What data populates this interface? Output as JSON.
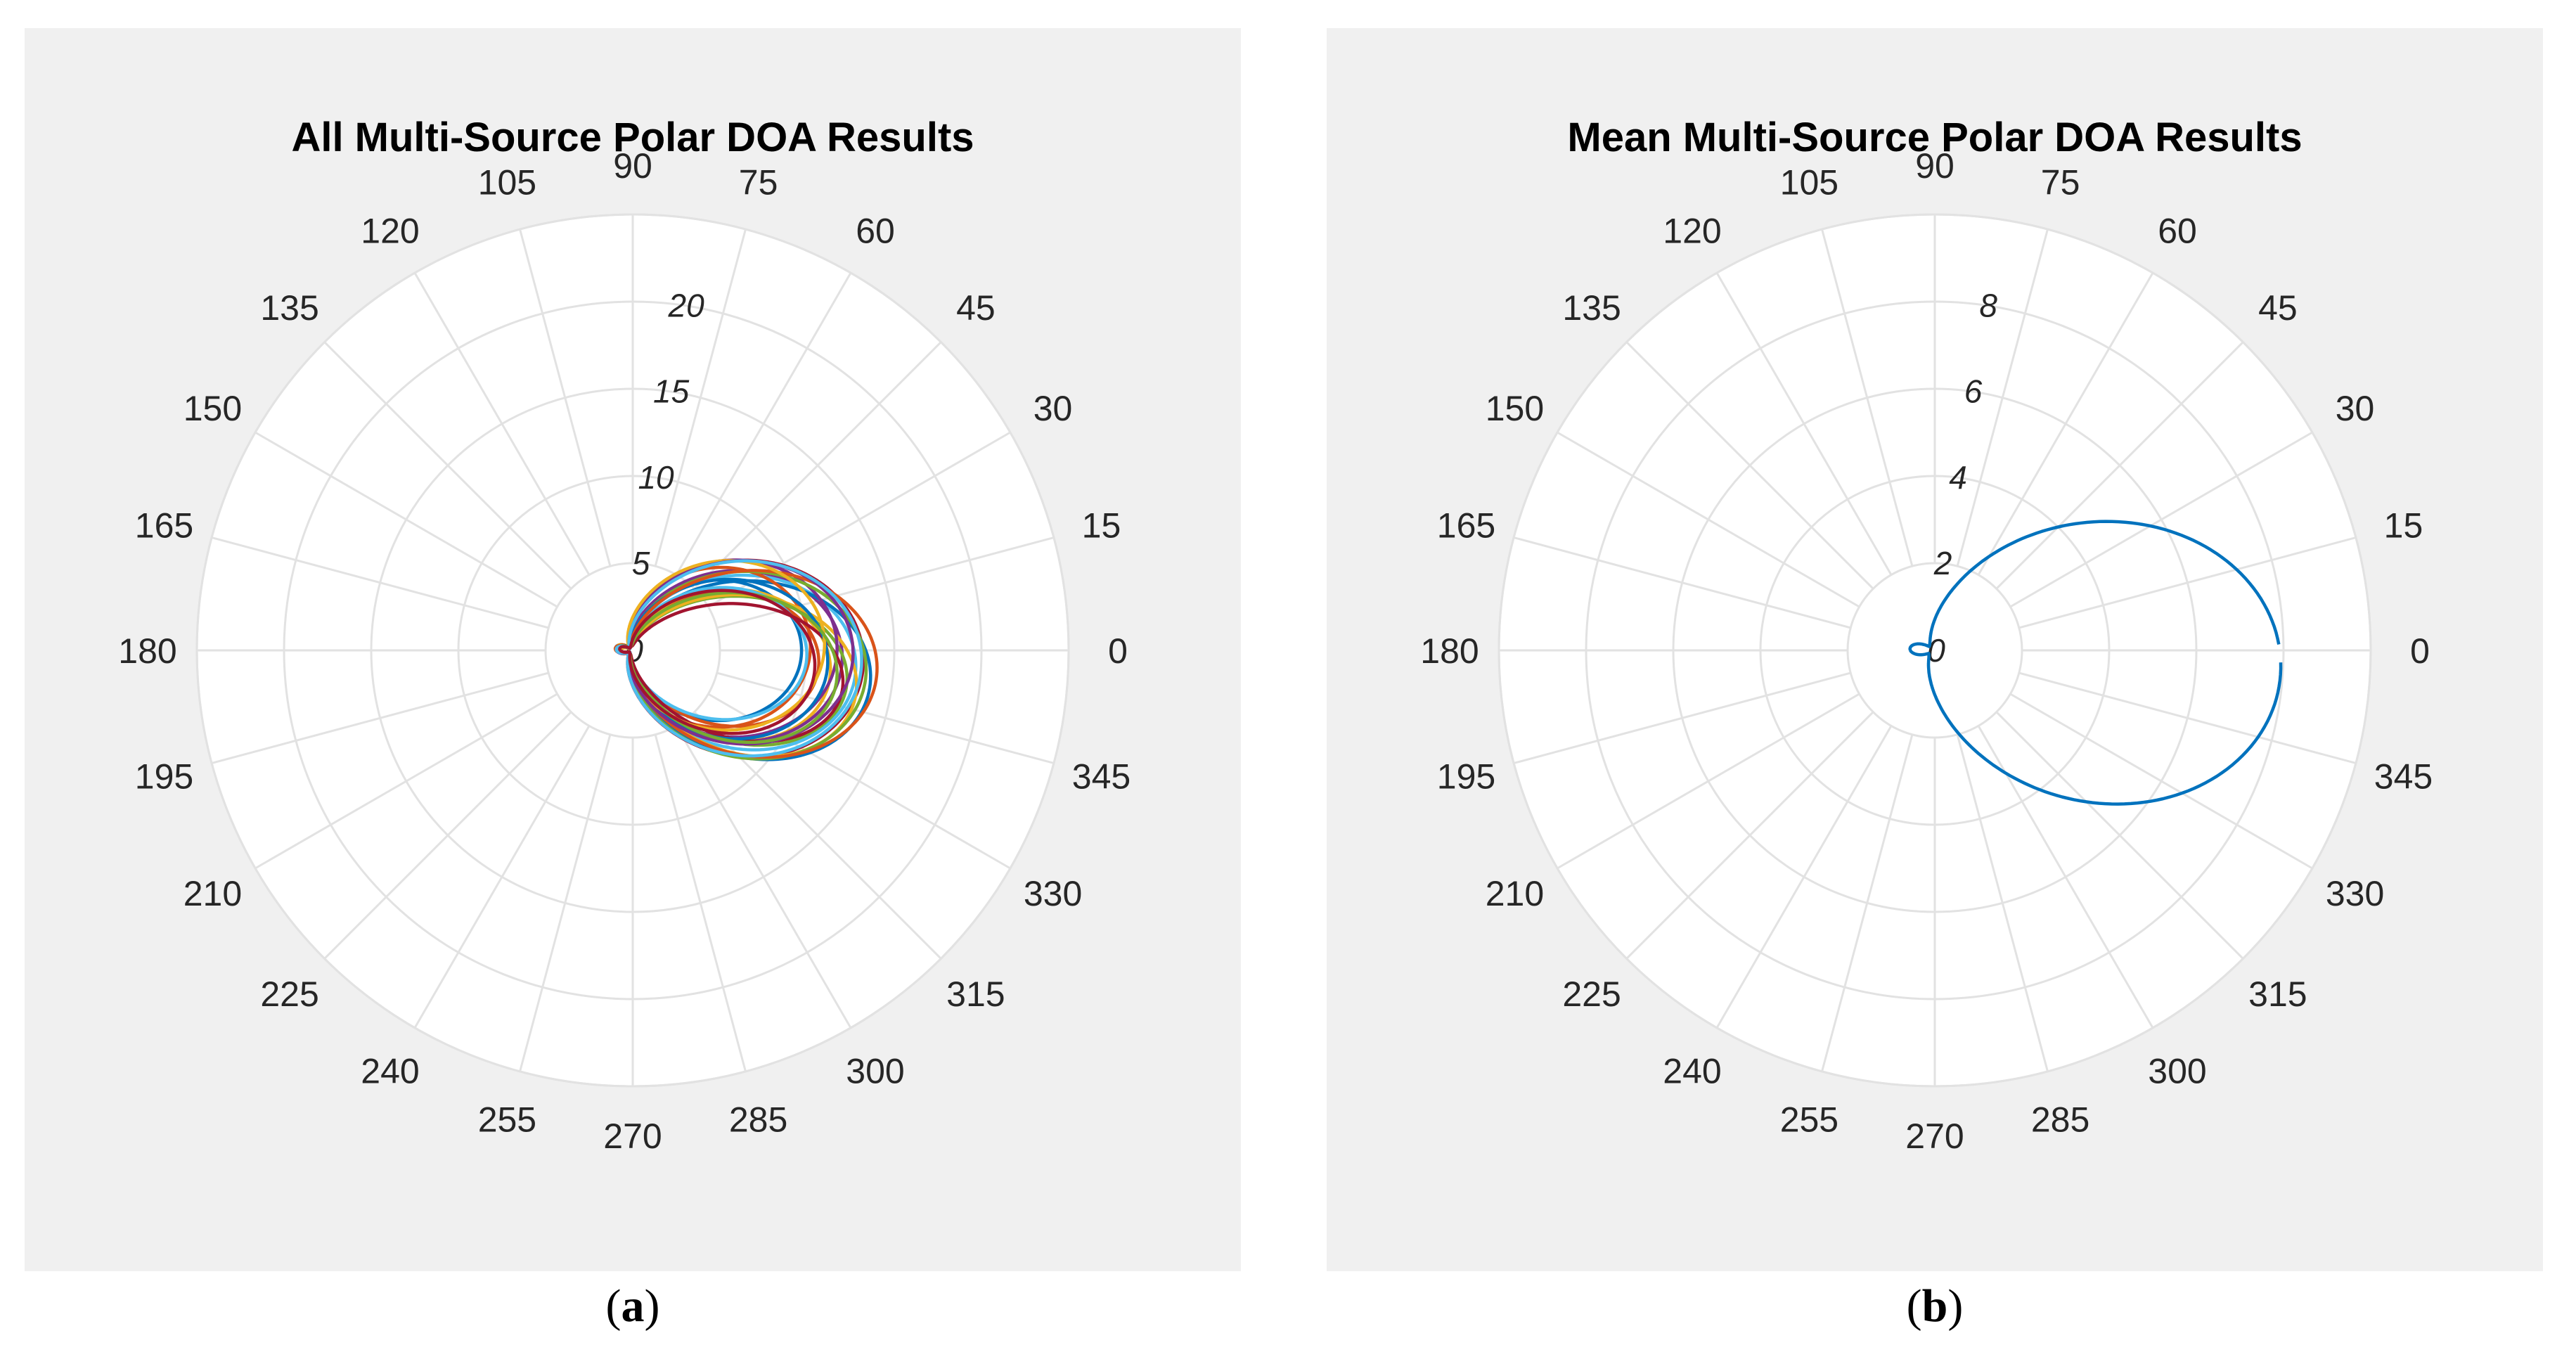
{
  "chart_data": [
    {
      "type": "polar-line",
      "title": "All Multi-Source Polar DOA Results",
      "caption": "a",
      "theta_ticks": [
        "0",
        "15",
        "30",
        "45",
        "60",
        "75",
        "90",
        "105",
        "120",
        "135",
        "150",
        "165",
        "180",
        "195",
        "210",
        "225",
        "240",
        "255",
        "270",
        "285",
        "300",
        "315",
        "330",
        "345"
      ],
      "r_ticks": [
        "0",
        "5",
        "10",
        "15",
        "20"
      ],
      "rlim": [
        0,
        25
      ],
      "r_tick_label_angle_deg": 80,
      "grid": true,
      "series_note_colors": [
        "#0072bd",
        "#d95319",
        "#edb120",
        "#7e2f8e",
        "#77ac30",
        "#4dbeee",
        "#a2142f"
      ],
      "series": [
        {
          "peak_r": 9.5,
          "half_width_deg": 34,
          "rotation_deg": 0
        },
        {
          "peak_r": 10.5,
          "half_width_deg": 28,
          "rotation_deg": -5
        },
        {
          "peak_r": 11.2,
          "half_width_deg": 30,
          "rotation_deg": -8
        },
        {
          "peak_r": 11.8,
          "half_width_deg": 33,
          "rotation_deg": -3
        },
        {
          "peak_r": 12.2,
          "half_width_deg": 26,
          "rotation_deg": -10
        },
        {
          "peak_r": 12.6,
          "half_width_deg": 31,
          "rotation_deg": -6
        },
        {
          "peak_r": 13.0,
          "half_width_deg": 35,
          "rotation_deg": -4
        },
        {
          "peak_r": 13.5,
          "half_width_deg": 29,
          "rotation_deg": -9
        },
        {
          "peak_r": 10.0,
          "half_width_deg": 38,
          "rotation_deg": 2
        },
        {
          "peak_r": 12.8,
          "half_width_deg": 27,
          "rotation_deg": -12
        },
        {
          "peak_r": 11.5,
          "half_width_deg": 36,
          "rotation_deg": 1
        },
        {
          "peak_r": 13.2,
          "half_width_deg": 32,
          "rotation_deg": -7
        },
        {
          "peak_r": 9.8,
          "half_width_deg": 30,
          "rotation_deg": -2
        },
        {
          "peak_r": 12.0,
          "half_width_deg": 24,
          "rotation_deg": -11
        },
        {
          "peak_r": 11.0,
          "half_width_deg": 33,
          "rotation_deg": -5
        },
        {
          "peak_r": 13.8,
          "half_width_deg": 30,
          "rotation_deg": -6
        },
        {
          "peak_r": 10.8,
          "half_width_deg": 37,
          "rotation_deg": 3
        },
        {
          "peak_r": 12.4,
          "half_width_deg": 34,
          "rotation_deg": -1
        },
        {
          "peak_r": 11.6,
          "half_width_deg": 28,
          "rotation_deg": -9
        },
        {
          "peak_r": 12.9,
          "half_width_deg": 35,
          "rotation_deg": -4
        },
        {
          "peak_r": 10.3,
          "half_width_deg": 31,
          "rotation_deg": -7
        }
      ]
    },
    {
      "type": "polar-line",
      "title": "Mean Multi-Source Polar DOA Results",
      "caption": "b",
      "theta_ticks": [
        "0",
        "15",
        "30",
        "45",
        "60",
        "75",
        "90",
        "105",
        "120",
        "135",
        "150",
        "165",
        "180",
        "195",
        "210",
        "225",
        "240",
        "255",
        "270",
        "285",
        "300",
        "315",
        "330",
        "345"
      ],
      "r_ticks": [
        "0",
        "2",
        "4",
        "6",
        "8"
      ],
      "rlim": [
        0,
        10
      ],
      "r_tick_label_angle_deg": 80,
      "grid": true,
      "series": [
        {
          "color": "#0072bd",
          "peak_r": 7.8,
          "half_width_deg": 33,
          "rotation_deg": -4,
          "gap_deg": [
            -2,
            1
          ]
        }
      ]
    }
  ]
}
